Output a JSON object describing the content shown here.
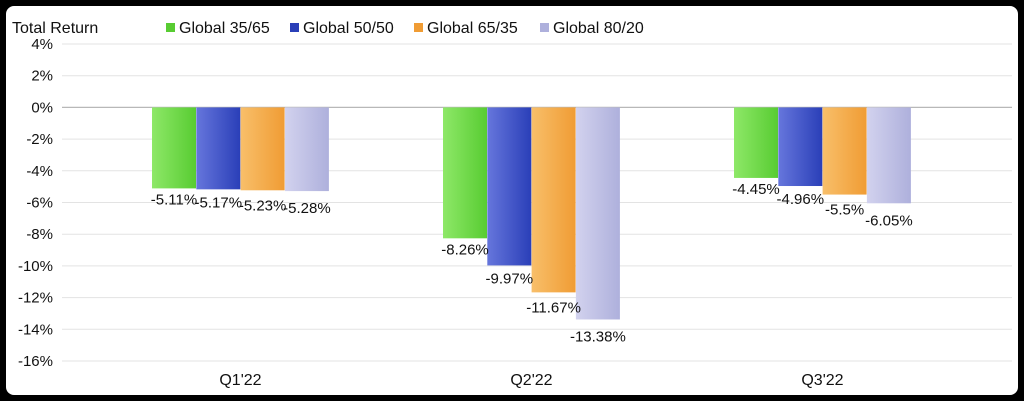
{
  "chart_data": {
    "type": "bar",
    "title": "Total Return",
    "categories": [
      "Q1'22",
      "Q2'22",
      "Q3'22"
    ],
    "series": [
      {
        "name": "Global 35/65",
        "values": [
          -5.11,
          -8.26,
          -4.45
        ],
        "labels": [
          "-5.11%",
          "-8.26%",
          "-4.45%"
        ]
      },
      {
        "name": "Global 50/50",
        "values": [
          -5.17,
          -9.97,
          -4.96
        ],
        "labels": [
          "-5.17%",
          "-9.97%",
          "-4.96%"
        ]
      },
      {
        "name": "Global 65/35",
        "values": [
          -5.23,
          -11.67,
          -5.5
        ],
        "labels": [
          "-5.23%",
          "-11.67%",
          "-5.5%"
        ]
      },
      {
        "name": "Global 80/20",
        "values": [
          -5.28,
          -13.38,
          -6.05
        ],
        "labels": [
          "-5.28%",
          "-13.38%",
          "-6.05%"
        ]
      }
    ],
    "colors": [
      [
        "#8ee868",
        "#58cc32"
      ],
      [
        "#6676dc",
        "#2a3fb8"
      ],
      [
        "#f8bf6a",
        "#f09c34"
      ],
      [
        "#d2d2ee",
        "#aeb0dc"
      ]
    ],
    "ylim": [
      -16,
      4
    ],
    "yticks": [
      "4%",
      "2%",
      "0%",
      "-2%",
      "-4%",
      "-6%",
      "-8%",
      "-10%",
      "-12%",
      "-14%",
      "-16%"
    ],
    "ytick_values": [
      4,
      2,
      0,
      -2,
      -4,
      -6,
      -8,
      -10,
      -12,
      -14,
      -16
    ],
    "grid": true,
    "legend_position": "top"
  }
}
